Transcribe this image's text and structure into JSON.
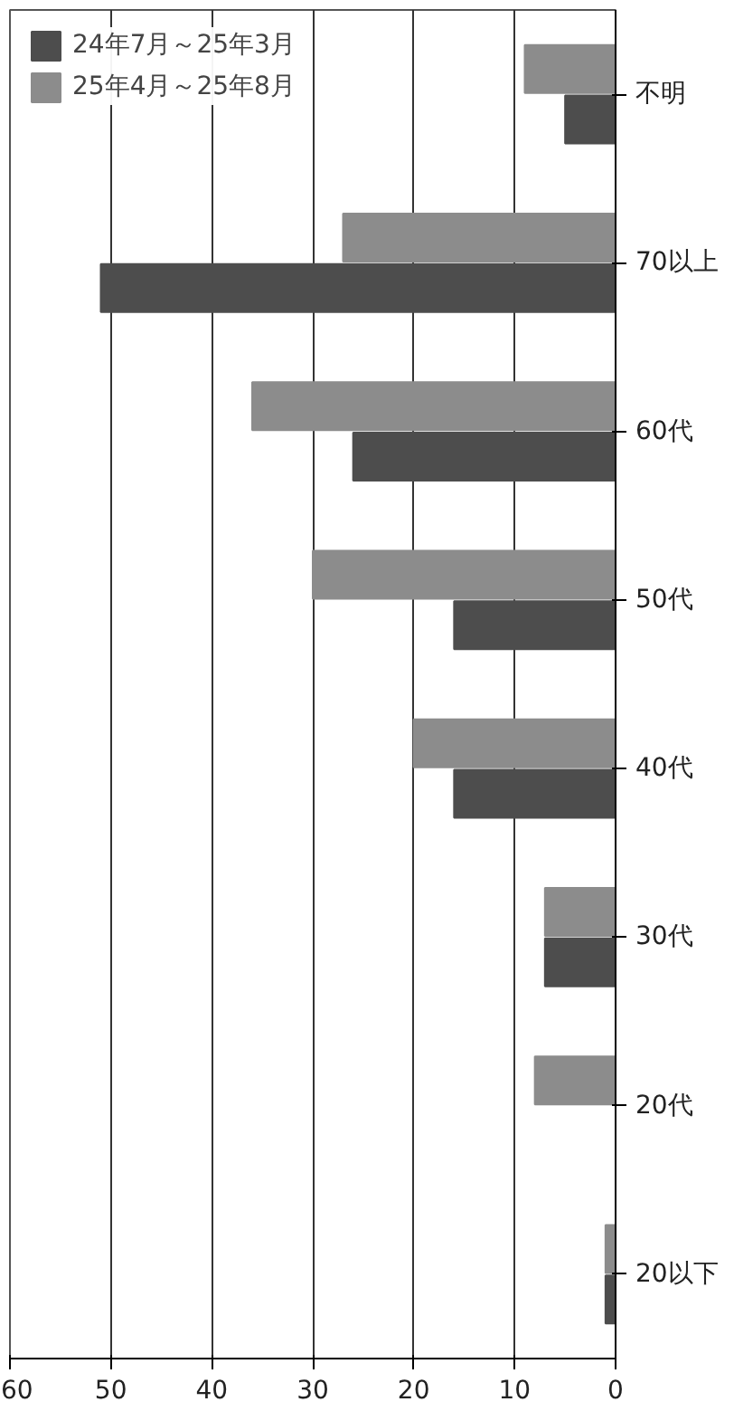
{
  "chart_data": {
    "type": "bar",
    "orientation": "horizontal",
    "categories": [
      "不明",
      "70以上",
      "60代",
      "50代",
      "40代",
      "30代",
      "20代",
      "20以下"
    ],
    "series": [
      {
        "name": "24年7月～25年3月",
        "color": "#4d4d4d",
        "values": [
          5,
          51,
          26,
          16,
          16,
          7,
          0,
          1
        ]
      },
      {
        "name": "25年4月～25年8月",
        "color": "#8c8c8c",
        "values": [
          9,
          27,
          36,
          30,
          20,
          7,
          8,
          1
        ]
      }
    ],
    "xlim": [
      60,
      0
    ],
    "xticks": [
      0,
      10,
      20,
      30,
      40,
      50,
      60
    ],
    "grid": "x",
    "legend": "top"
  }
}
